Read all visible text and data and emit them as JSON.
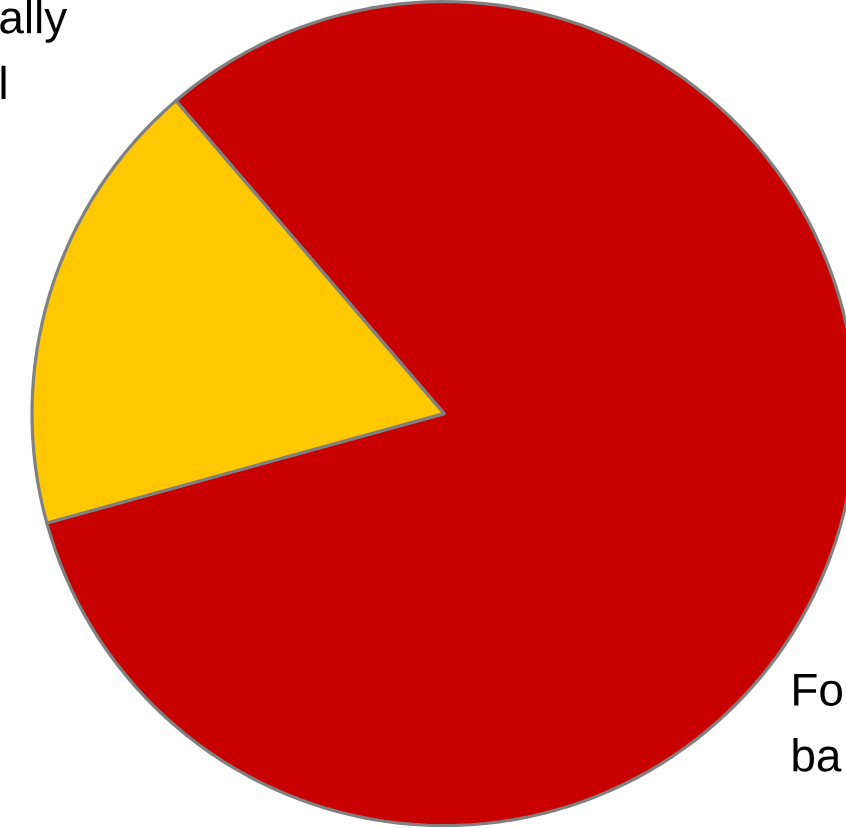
{
  "chart_data": {
    "type": "pie",
    "categories": [
      "Fo ba",
      "ally l"
    ],
    "values": [
      82,
      18
    ],
    "colors": [
      "#c80000",
      "#ffc800"
    ]
  }
}
